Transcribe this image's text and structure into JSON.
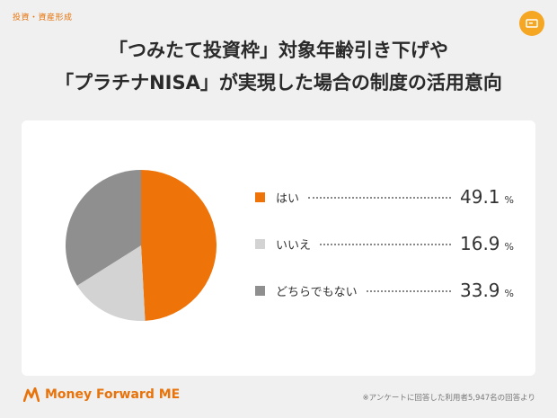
{
  "header": {
    "category": "投資・資産形成",
    "badge_icon": "monitor-icon",
    "title_line1": "「つみたて投資枠」対象年齢引き下げや",
    "title_line2": "「プラチナNISA」が実現した場合の制度の活用意向"
  },
  "chart_data": {
    "type": "pie",
    "start": "top, clockwise",
    "slices": [
      {
        "label": "はい",
        "value": 49.1,
        "unit": "%",
        "color": "#ee7308"
      },
      {
        "label": "いいえ",
        "value": 16.9,
        "unit": "%",
        "color": "#d3d3d3"
      },
      {
        "label": "どちらでもない",
        "value": 33.9,
        "unit": "%",
        "color": "#8f8f8f"
      }
    ]
  },
  "footer": {
    "logo_text": "Money Forward ME",
    "logo_color": "#e8730a",
    "footnote": "※アンケートに回答した利用者5,947名の回答より"
  }
}
